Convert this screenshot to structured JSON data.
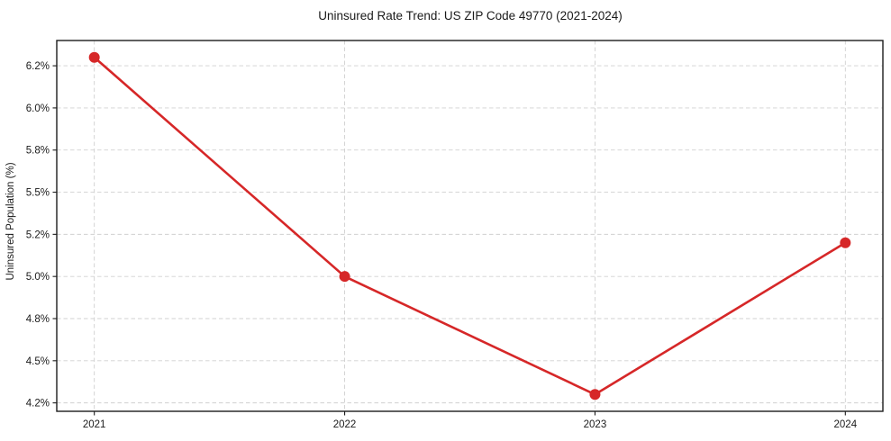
{
  "chart_data": {
    "type": "line",
    "title": "Uninsured Rate Trend: US ZIP Code 49770 (2021-2024)",
    "xlabel": "",
    "ylabel": "Uninsured Population (%)",
    "x": [
      2021,
      2022,
      2023,
      2024
    ],
    "x_tick_labels": [
      "2021",
      "2022",
      "2023",
      "2024"
    ],
    "values": [
      6.3,
      5.0,
      4.3,
      5.2
    ],
    "y_ticks": [
      {
        "value": 4.25,
        "label": "4.2%"
      },
      {
        "value": 4.5,
        "label": "4.5%"
      },
      {
        "value": 4.75,
        "label": "4.8%"
      },
      {
        "value": 5.0,
        "label": "5.0%"
      },
      {
        "value": 5.25,
        "label": "5.2%"
      },
      {
        "value": 5.5,
        "label": "5.5%"
      },
      {
        "value": 5.75,
        "label": "5.8%"
      },
      {
        "value": 6.0,
        "label": "6.0%"
      },
      {
        "value": 6.25,
        "label": "6.2%"
      }
    ],
    "xlim": [
      2020.85,
      2024.15
    ],
    "ylim": [
      4.2,
      6.4
    ],
    "grid": true,
    "grid_style": "dashed",
    "legend_position": "none",
    "colors": {
      "line": "#d62728",
      "marker": "#d62728",
      "grid": "#d0d0d0",
      "spine": "#1c1c1c",
      "text": "#1a1a1a",
      "background": "#ffffff"
    }
  }
}
